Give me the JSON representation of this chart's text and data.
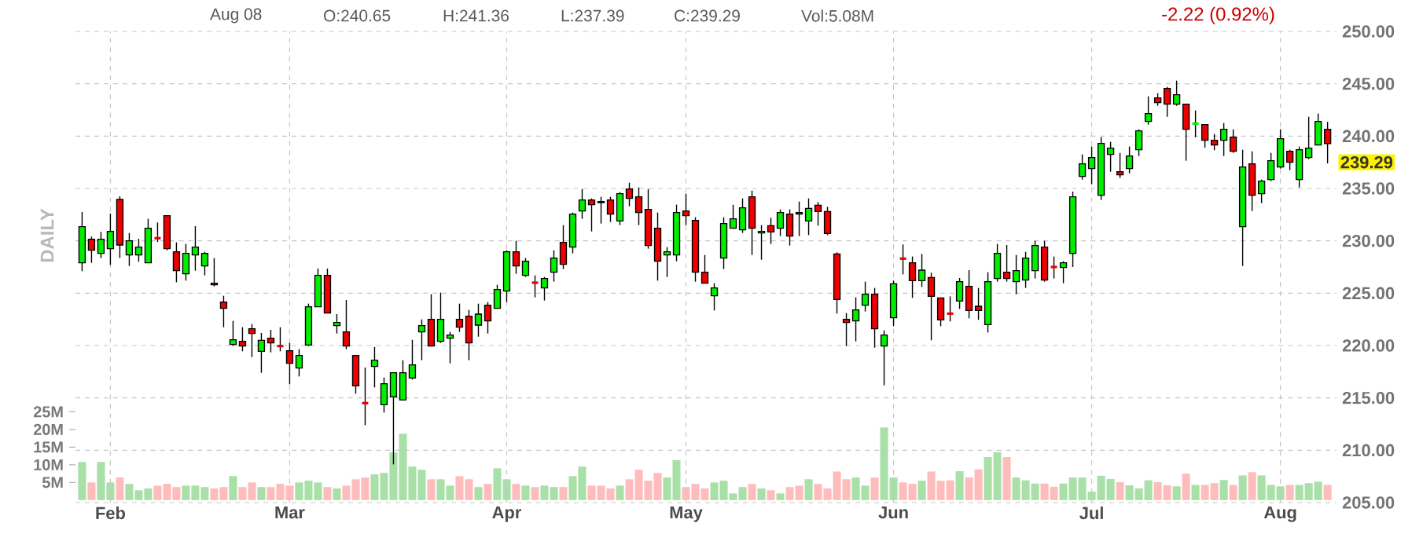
{
  "chart_data": {
    "type": "candlestick",
    "annotations": [
      "Aug 08",
      "O:240.65",
      "H:241.36",
      "L:237.39",
      "C:239.29",
      "Vol:5.08M",
      "-2.22 (0.92%)",
      "239.29",
      "DAILY"
    ],
    "categories": [
      null,
      null,
      null,
      "Feb",
      null,
      null,
      null,
      null,
      null,
      null,
      null,
      null,
      null,
      null,
      null,
      null,
      null,
      null,
      null,
      null,
      null,
      null,
      "Mar",
      null,
      null,
      null,
      null,
      null,
      null,
      null,
      null,
      null,
      null,
      null,
      null,
      null,
      null,
      null,
      null,
      null,
      null,
      null,
      null,
      null,
      null,
      "Apr",
      null,
      null,
      null,
      null,
      null,
      null,
      null,
      null,
      null,
      null,
      null,
      null,
      null,
      null,
      null,
      null,
      null,
      null,
      "May",
      null,
      null,
      null,
      null,
      null,
      null,
      null,
      null,
      null,
      null,
      null,
      null,
      null,
      null,
      null,
      null,
      null,
      null,
      null,
      null,
      null,
      "Jun",
      null,
      null,
      null,
      null,
      null,
      null,
      null,
      null,
      null,
      null,
      null,
      null,
      null,
      null,
      null,
      null,
      null,
      null,
      null,
      null,
      "Jul",
      null,
      null,
      null,
      null,
      null,
      null,
      null,
      null,
      null,
      null,
      null,
      null,
      null,
      null,
      null,
      null,
      null,
      null,
      null,
      "Aug",
      null,
      null,
      null,
      null,
      null
    ],
    "ylim": [
      205,
      250
    ],
    "yticks": [
      {
        "value": 205,
        "label": "205.00"
      },
      {
        "value": 210,
        "label": "210.00"
      },
      {
        "value": 215,
        "label": "215.00"
      },
      {
        "value": 220,
        "label": "220.00"
      },
      {
        "value": 225,
        "label": "225.00"
      },
      {
        "value": 230,
        "label": "230.00"
      },
      {
        "value": 235,
        "label": "235.00"
      },
      {
        "value": 240,
        "label": "240.00"
      },
      {
        "value": 245,
        "label": "245.00"
      },
      {
        "value": 250,
        "label": "250.00"
      }
    ],
    "y2lim": [
      -0.7,
      132.7
    ],
    "y2ticks": [
      {
        "value": 5,
        "label": "5M"
      },
      {
        "value": 10,
        "label": "10M"
      },
      {
        "value": 15,
        "label": "15M"
      },
      {
        "value": 20,
        "label": "20M"
      },
      {
        "value": 25,
        "label": "25M"
      }
    ],
    "grid": true,
    "series": [
      {
        "type": "candlestick",
        "colors": [
          "#00ee00",
          "#ee0000",
          "#00ee00",
          "#00ee00",
          "#ee0000",
          "#00ee00",
          "#00ee00",
          "#00ee00",
          "#ee0000",
          "#ee0000",
          "#ee0000",
          "#00ee00",
          "#00ee00",
          "#00ee00",
          "#ee0000",
          "#ee0000",
          "#00ee00",
          "#ee0000",
          "#ee0000",
          "#00ee00",
          "#ee0000",
          "#ee0000",
          "#ee0000",
          "#00ee00",
          "#00ee00",
          "#00ee00",
          "#ee0000",
          "#00ee00",
          "#ee0000",
          "#ee0000",
          "#ee0000",
          "#00ee00",
          "#00ee00",
          "#00ee00",
          "#00ee00",
          "#00ee00",
          "#00ee00",
          "#ee0000",
          "#00ee00",
          "#00ee00",
          "#ee0000",
          "#ee0000",
          "#00ee00",
          "#ee0000",
          "#00ee00",
          "#00ee00",
          "#ee0000",
          "#00ee00",
          "#ee0000",
          "#00ee00",
          "#00ee00",
          "#ee0000",
          "#00ee00",
          "#00ee00",
          "#ee0000",
          "#ee0000",
          "#ee0000",
          "#00ee00",
          "#ee0000",
          "#ee0000",
          "#ee0000",
          "#ee0000",
          "#00ee00",
          "#00ee00",
          "#ee0000",
          "#ee0000",
          "#ee0000",
          "#00ee00",
          "#00ee00",
          "#00ee00",
          "#00ee00",
          "#ee0000",
          "#00ee00",
          "#ee0000",
          "#00ee00",
          "#ee0000",
          "#ee0000",
          "#00ee00",
          "#ee0000",
          "#ee0000",
          "#ee0000",
          "#ee0000",
          "#00ee00",
          "#00ee00",
          "#ee0000",
          "#00ee00",
          "#00ee00",
          "#ee0000",
          "#ee0000",
          "#00ee00",
          "#ee0000",
          "#ee0000",
          "#ee0000",
          "#00ee00",
          "#ee0000",
          "#ee0000",
          "#00ee00",
          "#00ee00",
          "#ee0000",
          "#00ee00",
          "#00ee00",
          "#00ee00",
          "#ee0000",
          "#ee0000",
          "#00ee00",
          "#00ee00",
          "#00ee00",
          "#00ee00",
          "#00ee00",
          "#00ee00",
          "#ee0000",
          "#00ee00",
          "#00ee00",
          "#00ee00",
          "#ee0000",
          "#ee0000",
          "#00ee00",
          "#ee0000",
          "#00ee00",
          "#ee0000",
          "#ee0000",
          "#00ee00",
          "#ee0000",
          "#00ee00",
          "#ee0000",
          "#00ee00",
          "#00ee00",
          "#00ee00",
          "#ee0000",
          "#00ee00",
          "#00ee00",
          "#00ee00",
          "#ee0000"
        ],
        "ohlc": [
          [
            227.9,
            232.75,
            227.1,
            231.35
          ],
          [
            230.15,
            230.4,
            227.9,
            229.1
          ],
          [
            228.8,
            230.85,
            228.35,
            230.15
          ],
          [
            229.25,
            232.6,
            227.7,
            230.9
          ],
          [
            233.95,
            234.25,
            228.35,
            229.6
          ],
          [
            228.65,
            230.75,
            227.6,
            230
          ],
          [
            228.65,
            230.2,
            228,
            229.4
          ],
          [
            227.9,
            232.1,
            227.9,
            231.2
          ],
          [
            230.25,
            231.75,
            229.9,
            230.25
          ],
          [
            232.4,
            232.4,
            229.1,
            229.25
          ],
          [
            228.95,
            229.85,
            226.05,
            227.15
          ],
          [
            226.85,
            229.7,
            226.2,
            228.8
          ],
          [
            228.65,
            231.4,
            227.15,
            229.4
          ],
          [
            227.6,
            228.95,
            226.7,
            228.8
          ],
          [
            225.95,
            228.35,
            225.65,
            225.8
          ],
          [
            224.15,
            224.75,
            221.75,
            223.55
          ],
          [
            220.1,
            222.35,
            219.95,
            220.55
          ],
          [
            220.4,
            221.75,
            219.45,
            219.95
          ],
          [
            221.6,
            222.05,
            218.9,
            221.15
          ],
          [
            219.45,
            221.2,
            217.4,
            220.5
          ],
          [
            220.7,
            221.5,
            219.35,
            220.25
          ],
          [
            219.95,
            221.75,
            219.45,
            219.95
          ],
          [
            219.5,
            220.25,
            216.3,
            218.3
          ],
          [
            217.85,
            219.65,
            217.05,
            219.05
          ],
          [
            220.05,
            224,
            219.95,
            223.7
          ],
          [
            223.7,
            227.35,
            223.7,
            226.7
          ],
          [
            226.7,
            227.35,
            223.1,
            223.1
          ],
          [
            221.9,
            223,
            221.15,
            222.2
          ],
          [
            221.3,
            224.35,
            219.65,
            219.95
          ],
          [
            219.05,
            219.05,
            215.4,
            216.15
          ],
          [
            214.5,
            217.9,
            212.4,
            214.5
          ],
          [
            218,
            219.85,
            216,
            218.6
          ],
          [
            214.35,
            216.95,
            213.6,
            216.35
          ],
          [
            215.1,
            217.4,
            208.65,
            217.4
          ],
          [
            214.8,
            218.6,
            214.8,
            217.4
          ],
          [
            216.9,
            220.55,
            216.75,
            218.15
          ],
          [
            221.3,
            222.5,
            218.6,
            221.9
          ],
          [
            222.5,
            224.9,
            219.95,
            219.95
          ],
          [
            220.4,
            225.05,
            220.25,
            222.5
          ],
          [
            220.7,
            221.3,
            218.3,
            221
          ],
          [
            222.5,
            224,
            221.3,
            221.75
          ],
          [
            222.8,
            223.4,
            218.6,
            220.25
          ],
          [
            221.95,
            224,
            220.85,
            223
          ],
          [
            223.85,
            224.15,
            221.15,
            222.35
          ],
          [
            223.55,
            225.8,
            223.55,
            225.35
          ],
          [
            225.2,
            229.1,
            224.15,
            228.95
          ],
          [
            228.95,
            230,
            226.85,
            227.6
          ],
          [
            226.7,
            228.35,
            226.55,
            228.05
          ],
          [
            226,
            226.7,
            224.6,
            226
          ],
          [
            225.5,
            226.55,
            224.3,
            226.4
          ],
          [
            227,
            229.1,
            226.1,
            228.35
          ],
          [
            229.85,
            231.5,
            227.3,
            227.75
          ],
          [
            229.4,
            232.7,
            228.8,
            232.55
          ],
          [
            232.85,
            234.95,
            232.1,
            233.9
          ],
          [
            233.9,
            234.05,
            230.9,
            233.45
          ],
          [
            233.75,
            234.2,
            231.65,
            233.65
          ],
          [
            233.9,
            234.2,
            231.8,
            232.55
          ],
          [
            231.9,
            234.65,
            231.5,
            234.5
          ],
          [
            234.95,
            235.55,
            233.3,
            234.05
          ],
          [
            234.2,
            235.1,
            231.5,
            232.7
          ],
          [
            233,
            234.95,
            229.25,
            229.55
          ],
          [
            231.2,
            232.7,
            226.2,
            228.05
          ],
          [
            228.65,
            229.4,
            226.55,
            228.95
          ],
          [
            228.65,
            233.45,
            228.05,
            232.7
          ],
          [
            232.85,
            234.5,
            231.5,
            232.4
          ],
          [
            231.95,
            232.25,
            226.1,
            227
          ],
          [
            227,
            228.65,
            225.95,
            225.95
          ],
          [
            224.75,
            225.95,
            223.35,
            225.5
          ],
          [
            228.35,
            232.25,
            227.3,
            231.65
          ],
          [
            231.2,
            233.45,
            231.2,
            232.1
          ],
          [
            231.05,
            234.05,
            230.75,
            233.15
          ],
          [
            234.2,
            234.8,
            228.65,
            231.2
          ],
          [
            230.75,
            231.5,
            228.2,
            230.9
          ],
          [
            231.45,
            232.2,
            229.7,
            230.85
          ],
          [
            231.2,
            233,
            230.45,
            232.7
          ],
          [
            232.55,
            233,
            229.55,
            230.45
          ],
          [
            232.7,
            233.75,
            230.45,
            232.55
          ],
          [
            231.9,
            234.05,
            230.55,
            233.1
          ],
          [
            233.4,
            233.7,
            231.45,
            232.8
          ],
          [
            232.8,
            233.25,
            230.55,
            230.7
          ],
          [
            228.75,
            228.9,
            223.05,
            224.4
          ],
          [
            222.5,
            223.1,
            219.95,
            222.2
          ],
          [
            222.35,
            224.6,
            220.4,
            223.4
          ],
          [
            223.85,
            226.1,
            223.25,
            224.9
          ],
          [
            224.9,
            225.5,
            219.8,
            221.6
          ],
          [
            219.95,
            221.45,
            216.2,
            221
          ],
          [
            222.65,
            226.2,
            221.85,
            225.9
          ],
          [
            228.3,
            229.65,
            226.8,
            228.3
          ],
          [
            227.9,
            228.5,
            224.55,
            226.2
          ],
          [
            226.2,
            228.75,
            225.6,
            227.2
          ],
          [
            226.5,
            226.95,
            220.5,
            224.7
          ],
          [
            224.55,
            224.55,
            221.85,
            222.45
          ],
          [
            223.05,
            224.7,
            222.3,
            223.05
          ],
          [
            224.25,
            226.45,
            223.5,
            226.1
          ],
          [
            225.65,
            227.2,
            222.6,
            223.35
          ],
          [
            223.75,
            225.5,
            222.45,
            223.35
          ],
          [
            222,
            227,
            221.25,
            226.1
          ],
          [
            226.4,
            229.7,
            226.1,
            228.8
          ],
          [
            227,
            229.6,
            226.1,
            226.4
          ],
          [
            226.1,
            228.65,
            224.9,
            227.15
          ],
          [
            226.25,
            228.95,
            225.5,
            228.35
          ],
          [
            227.15,
            230,
            226.4,
            229.55
          ],
          [
            229.4,
            230,
            226.1,
            226.25
          ],
          [
            227.5,
            228.5,
            226.4,
            227.5
          ],
          [
            227.45,
            228.05,
            225.95,
            227.9
          ],
          [
            228.8,
            234.7,
            227.5,
            234.2
          ],
          [
            236.15,
            238.25,
            235.85,
            237.35
          ],
          [
            236.9,
            239,
            235.4,
            237.95
          ],
          [
            234.35,
            239.9,
            233.9,
            239.3
          ],
          [
            238.25,
            239.45,
            236.6,
            238.85
          ],
          [
            236.6,
            238.4,
            236,
            236.3
          ],
          [
            236.9,
            239,
            236.45,
            238.1
          ],
          [
            238.7,
            240.65,
            238.1,
            240.5
          ],
          [
            241.4,
            243.8,
            241.1,
            242.15
          ],
          [
            243.65,
            244.1,
            242.9,
            243.2
          ],
          [
            244.55,
            244.7,
            241.85,
            243.05
          ],
          [
            243.05,
            245.3,
            242.9,
            243.95
          ],
          [
            243.05,
            243.05,
            237.65,
            240.65
          ],
          [
            241.2,
            242.45,
            239.9,
            241.2
          ],
          [
            241.1,
            241.1,
            238.9,
            239.6
          ],
          [
            239.6,
            240.2,
            238.65,
            239.15
          ],
          [
            239.6,
            241.25,
            238.1,
            240.65
          ],
          [
            239.9,
            240.65,
            238.4,
            238.55
          ],
          [
            231.35,
            238.7,
            227.6,
            237.05
          ],
          [
            237.35,
            238.55,
            232.85,
            234.35
          ],
          [
            234.5,
            235.85,
            233.6,
            235.7
          ],
          [
            235.85,
            238.4,
            235.7,
            237.65
          ],
          [
            237.05,
            240.65,
            236.9,
            239.75
          ],
          [
            238.55,
            238.7,
            236.75,
            237.5
          ],
          [
            235.85,
            239,
            235.1,
            238.7
          ],
          [
            237.95,
            241.85,
            237.8,
            238.85
          ],
          [
            239.15,
            242.15,
            239.15,
            241.4
          ],
          [
            240.65,
            241.36,
            237.39,
            239.29
          ]
        ]
      },
      {
        "type": "bar",
        "axis": "y2",
        "colors": [
          "#a8e0a8",
          "#ffbcbc",
          "#a8e0a8",
          "#a8e0a8",
          "#ffbcbc",
          "#a8e0a8",
          "#a8e0a8",
          "#a8e0a8",
          "#ffbcbc",
          "#ffbcbc",
          "#ffbcbc",
          "#a8e0a8",
          "#a8e0a8",
          "#a8e0a8",
          "#ffbcbc",
          "#ffbcbc",
          "#a8e0a8",
          "#ffbcbc",
          "#ffbcbc",
          "#a8e0a8",
          "#ffbcbc",
          "#ffbcbc",
          "#ffbcbc",
          "#a8e0a8",
          "#a8e0a8",
          "#a8e0a8",
          "#ffbcbc",
          "#a8e0a8",
          "#ffbcbc",
          "#ffbcbc",
          "#ffbcbc",
          "#a8e0a8",
          "#a8e0a8",
          "#a8e0a8",
          "#a8e0a8",
          "#a8e0a8",
          "#a8e0a8",
          "#ffbcbc",
          "#a8e0a8",
          "#a8e0a8",
          "#ffbcbc",
          "#ffbcbc",
          "#a8e0a8",
          "#ffbcbc",
          "#a8e0a8",
          "#a8e0a8",
          "#ffbcbc",
          "#a8e0a8",
          "#ffbcbc",
          "#a8e0a8",
          "#a8e0a8",
          "#ffbcbc",
          "#a8e0a8",
          "#a8e0a8",
          "#ffbcbc",
          "#ffbcbc",
          "#ffbcbc",
          "#a8e0a8",
          "#ffbcbc",
          "#ffbcbc",
          "#ffbcbc",
          "#ffbcbc",
          "#a8e0a8",
          "#a8e0a8",
          "#ffbcbc",
          "#ffbcbc",
          "#ffbcbc",
          "#a8e0a8",
          "#a8e0a8",
          "#a8e0a8",
          "#a8e0a8",
          "#ffbcbc",
          "#a8e0a8",
          "#ffbcbc",
          "#a8e0a8",
          "#ffbcbc",
          "#ffbcbc",
          "#a8e0a8",
          "#ffbcbc",
          "#ffbcbc",
          "#ffbcbc",
          "#ffbcbc",
          "#a8e0a8",
          "#a8e0a8",
          "#ffbcbc",
          "#a8e0a8",
          "#a8e0a8",
          "#ffbcbc",
          "#ffbcbc",
          "#a8e0a8",
          "#ffbcbc",
          "#ffbcbc",
          "#ffbcbc",
          "#a8e0a8",
          "#ffbcbc",
          "#ffbcbc",
          "#a8e0a8",
          "#a8e0a8",
          "#ffbcbc",
          "#a8e0a8",
          "#a8e0a8",
          "#a8e0a8",
          "#ffbcbc",
          "#ffbcbc",
          "#a8e0a8",
          "#a8e0a8",
          "#a8e0a8",
          "#a8e0a8",
          "#a8e0a8",
          "#a8e0a8",
          "#ffbcbc",
          "#a8e0a8",
          "#a8e0a8",
          "#a8e0a8",
          "#ffbcbc",
          "#ffbcbc",
          "#a8e0a8",
          "#ffbcbc",
          "#a8e0a8",
          "#ffbcbc",
          "#ffbcbc",
          "#a8e0a8",
          "#ffbcbc",
          "#a8e0a8",
          "#ffbcbc",
          "#a8e0a8",
          "#a8e0a8",
          "#a8e0a8",
          "#ffbcbc",
          "#a8e0a8",
          "#a8e0a8",
          "#a8e0a8",
          "#ffbcbc"
        ],
        "values": [
          10.8,
          5.0,
          10.8,
          5.0,
          6.4,
          4.6,
          2.8,
          3.3,
          4.1,
          4.6,
          3.7,
          4.1,
          4.1,
          3.7,
          3.3,
          3.7,
          6.8,
          3.7,
          5.0,
          3.7,
          3.7,
          4.6,
          4.1,
          5.0,
          5.5,
          5.0,
          3.7,
          3.3,
          4.1,
          5.9,
          6.4,
          7.3,
          7.7,
          13.5,
          18.8,
          9.5,
          8.6,
          5.9,
          5.9,
          4.1,
          6.8,
          5.9,
          3.7,
          4.6,
          9.0,
          5.9,
          4.6,
          4.1,
          3.7,
          4.1,
          3.7,
          3.7,
          6.8,
          9.5,
          4.1,
          4.1,
          3.3,
          4.1,
          5.9,
          8.6,
          5.5,
          7.7,
          6.4,
          11.3,
          3.7,
          4.6,
          3.3,
          5.0,
          5.5,
          1.9,
          3.7,
          4.6,
          3.3,
          2.8,
          1.9,
          3.7,
          4.1,
          5.9,
          4.6,
          3.3,
          8.1,
          5.9,
          6.4,
          4.1,
          6.4,
          20.6,
          6.4,
          5.0,
          4.6,
          5.5,
          8.1,
          5.5,
          5.6,
          8.2,
          6.4,
          8.7,
          12.2,
          13.6,
          12.2,
          6.4,
          5.6,
          4.7,
          4.7,
          3.8,
          4.7,
          6.4,
          6.4,
          2.4,
          6.9,
          6.0,
          5.1,
          4.2,
          3.3,
          5.6,
          5.1,
          4.2,
          3.9,
          7.5,
          4.3,
          4.3,
          4.8,
          5.7,
          4.3,
          7.0,
          7.9,
          7.0,
          4.3,
          3.9,
          4.3,
          4.3,
          4.8,
          5.2,
          4.3
        ]
      }
    ]
  }
}
